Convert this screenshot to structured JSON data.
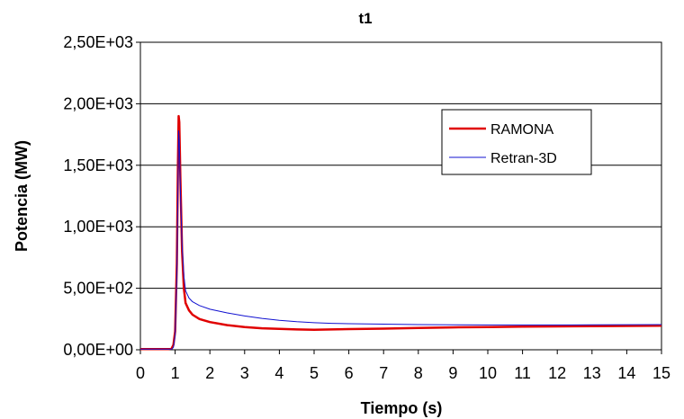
{
  "chart_data": {
    "type": "line",
    "title": "t1",
    "xlabel": "Tiempo (s)",
    "ylabel": "Potencia (MW)",
    "xlim": [
      0,
      15
    ],
    "ylim": [
      0,
      2500
    ],
    "x_ticks": [
      0,
      1,
      2,
      3,
      4,
      5,
      6,
      7,
      8,
      9,
      10,
      11,
      12,
      13,
      14,
      15
    ],
    "y_ticks": [
      {
        "value": 0,
        "label": "0,00E+00"
      },
      {
        "value": 500,
        "label": "5,00E+02"
      },
      {
        "value": 1000,
        "label": "1,00E+03"
      },
      {
        "value": 1500,
        "label": "1,50E+03"
      },
      {
        "value": 2000,
        "label": "2,00E+03"
      },
      {
        "value": 2500,
        "label": "2,50E+03"
      }
    ],
    "grid": "horizontal",
    "legend": "top-right",
    "series": [
      {
        "name": "RAMONA",
        "color": "#e00000",
        "x": [
          0,
          0.8,
          0.9,
          0.95,
          1.0,
          1.05,
          1.08,
          1.1,
          1.12,
          1.15,
          1.2,
          1.25,
          1.3,
          1.4,
          1.5,
          1.7,
          2.0,
          2.5,
          3,
          3.5,
          4,
          4.5,
          5,
          5.5,
          6,
          7,
          8,
          9,
          10,
          11,
          12,
          13,
          14,
          15
        ],
        "values": [
          5,
          5,
          10,
          40,
          150,
          700,
          1500,
          1900,
          1850,
          1400,
          800,
          500,
          380,
          320,
          285,
          250,
          225,
          200,
          185,
          175,
          170,
          165,
          163,
          165,
          168,
          172,
          177,
          182,
          185,
          188,
          190,
          192,
          194,
          195
        ]
      },
      {
        "name": "Retran-3D",
        "color": "#1010d0",
        "x": [
          0,
          0.9,
          0.95,
          1.0,
          1.05,
          1.08,
          1.1,
          1.12,
          1.15,
          1.2,
          1.25,
          1.3,
          1.4,
          1.5,
          1.7,
          2.0,
          2.5,
          3,
          3.5,
          4,
          4.5,
          5,
          5.5,
          6,
          7,
          8,
          9,
          10,
          11,
          12,
          13,
          14,
          15
        ],
        "values": [
          5,
          5,
          20,
          120,
          600,
          1300,
          1780,
          1700,
          1300,
          850,
          600,
          480,
          420,
          390,
          360,
          330,
          300,
          275,
          255,
          240,
          228,
          220,
          215,
          212,
          208,
          205,
          203,
          202,
          202,
          202,
          203,
          204,
          205
        ]
      }
    ]
  }
}
